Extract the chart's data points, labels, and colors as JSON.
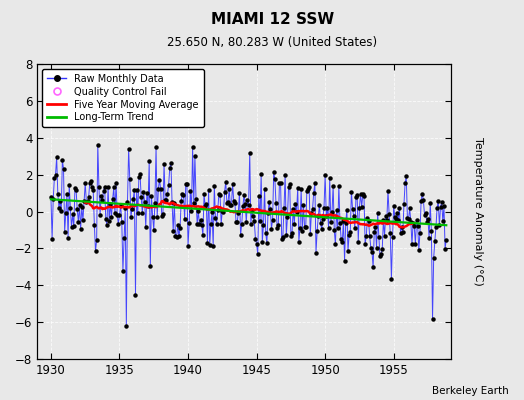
{
  "title": "MIAMI 12 SSW",
  "subtitle": "25.650 N, 80.283 W (United States)",
  "ylabel": "Temperature Anomaly (°C)",
  "credit": "Berkeley Earth",
  "xlim": [
    1929.0,
    1959.2
  ],
  "ylim": [
    -8,
    8
  ],
  "xticks": [
    1930,
    1935,
    1940,
    1945,
    1950,
    1955
  ],
  "yticks": [
    -8,
    -6,
    -4,
    -2,
    0,
    2,
    4,
    6,
    8
  ],
  "raw_color": "#3333ff",
  "ma_color": "#ff0000",
  "trend_color": "#00bb00",
  "qc_color": "#ff66ff",
  "bg_color": "#e8e8e8",
  "figsize": [
    5.24,
    4.0
  ],
  "dpi": 100,
  "seed": 17
}
